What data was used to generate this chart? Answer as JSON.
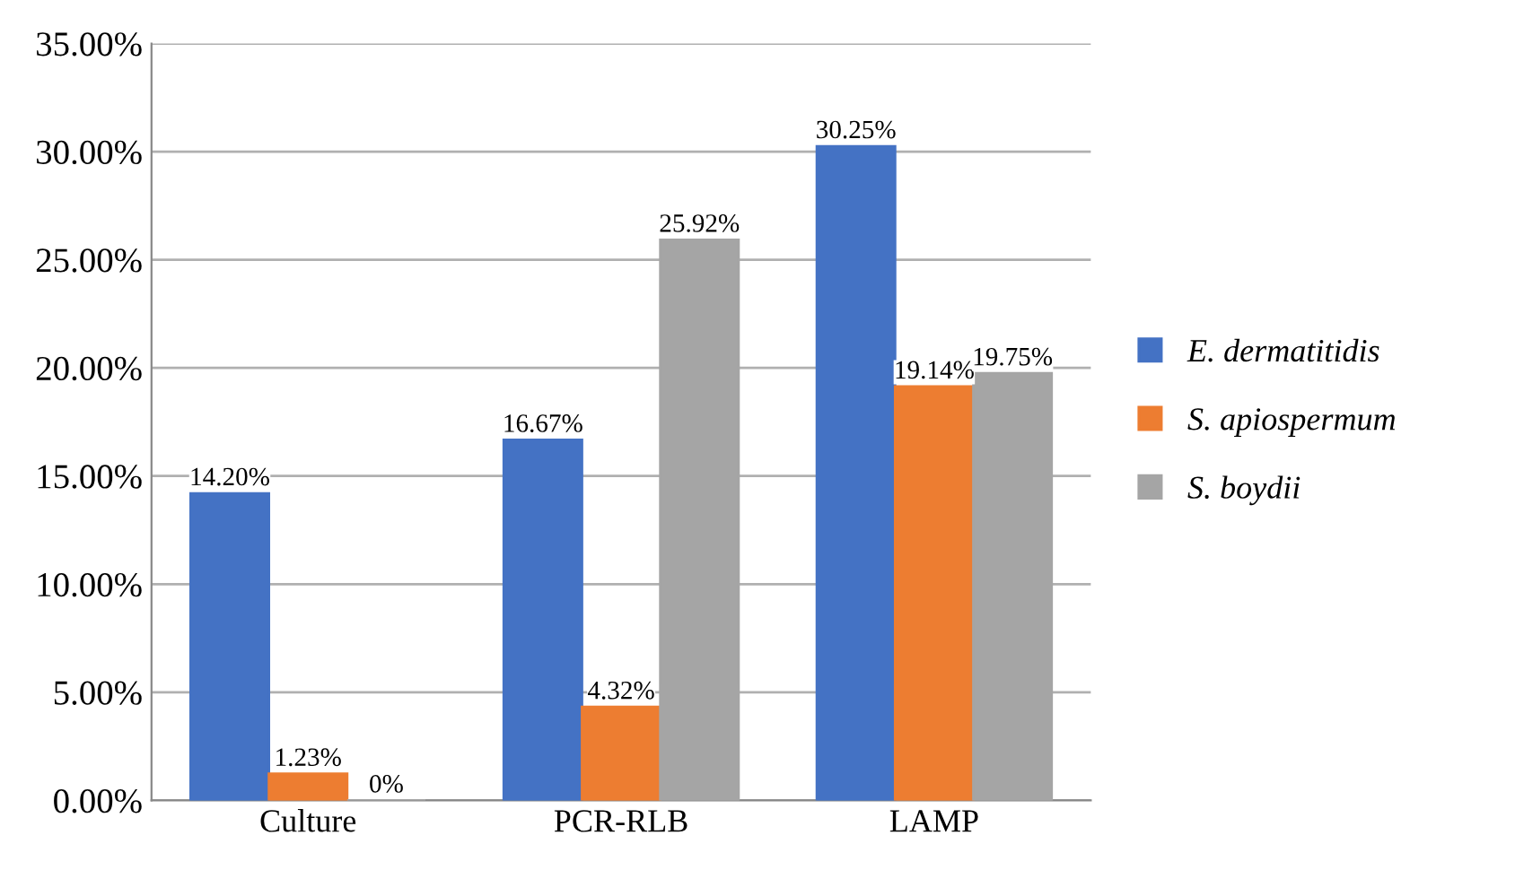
{
  "chart_data": {
    "type": "bar",
    "categories": [
      "Culture",
      "PCR-RLB",
      "LAMP"
    ],
    "series": [
      {
        "name": "E. dermatitidis",
        "color": "#4472c4",
        "values": [
          14.2,
          16.67,
          30.25
        ],
        "value_labels": [
          "14.20%",
          "16.67%",
          "30.25%"
        ]
      },
      {
        "name": "S. apiospermum",
        "color": "#ed7d31",
        "values": [
          1.23,
          4.32,
          19.14
        ],
        "value_labels": [
          "1.23%",
          "4.32%",
          "19.14%"
        ]
      },
      {
        "name": "S. boydii",
        "color": "#a5a5a5",
        "values": [
          0,
          25.92,
          19.75
        ],
        "value_labels": [
          "0%",
          "25.92%",
          "19.75%"
        ]
      }
    ],
    "ylim": [
      0,
      35
    ],
    "yticks": [
      {
        "value": 0,
        "label": "0.00%"
      },
      {
        "value": 5,
        "label": "5.00%"
      },
      {
        "value": 10,
        "label": "10.00%"
      },
      {
        "value": 15,
        "label": "15.00%"
      },
      {
        "value": 20,
        "label": "20.00%"
      },
      {
        "value": 25,
        "label": "25.00%"
      },
      {
        "value": 30,
        "label": "30.00%"
      },
      {
        "value": 35,
        "label": "35.00%"
      }
    ],
    "grid": "y",
    "legend": "right"
  }
}
